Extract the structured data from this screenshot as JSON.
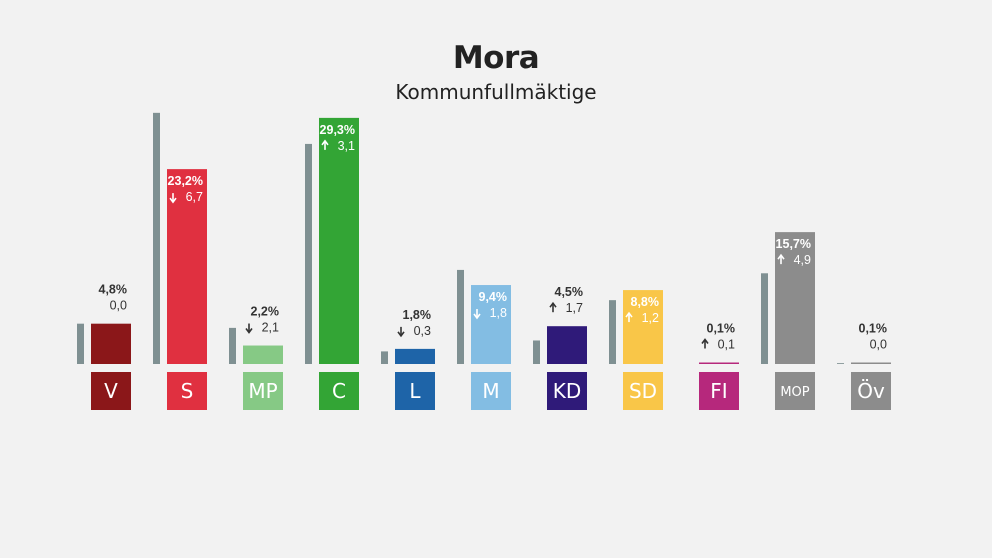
{
  "header": {
    "title": "Mora",
    "subtitle": "Kommunfullmäktige"
  },
  "chart_data": {
    "type": "bar",
    "title": "Mora",
    "subtitle": "Kommunfullmäktige",
    "unit": "%",
    "categories": [
      "V",
      "S",
      "MP",
      "C",
      "L",
      "M",
      "KD",
      "SD",
      "FI",
      "MOP",
      "Öv"
    ],
    "series": [
      {
        "values": [
          4.8,
          23.2,
          2.2,
          29.3,
          1.8,
          9.4,
          4.5,
          8.8,
          0.1,
          15.7,
          0.1
        ]
      },
      {
        "values": [
          4.8,
          29.9,
          4.3,
          26.2,
          1.5,
          11.2,
          2.8,
          7.6,
          0.0,
          10.8,
          0.1
        ]
      }
    ],
    "value_labels": [
      "4,8%",
      "23,2%",
      "2,2%",
      "29,3%",
      "1,8%",
      "9,4%",
      "4,5%",
      "8,8%",
      "0,1%",
      "15,7%",
      "0,1%"
    ],
    "change_labels": [
      "0,0",
      "6,7",
      "2,1",
      "3,1",
      "0,3",
      "1,8",
      "1,7",
      "1,2",
      "0,1",
      "4,9",
      "0,0"
    ],
    "change_direction": [
      "none",
      "down",
      "down",
      "up",
      "down",
      "down",
      "up",
      "up",
      "up",
      "up",
      "none"
    ],
    "colors": [
      "#8b1719",
      "#e03040",
      "#86c985",
      "#33a535",
      "#1e64a8",
      "#83bde3",
      "#2f1a79",
      "#f9c648",
      "#b6287c",
      "#8c8c8c",
      "#8c8c8c"
    ],
    "label_colors": [
      "#ffffff",
      "#ffffff",
      "#ffffff",
      "#ffffff",
      "#ffffff",
      "#ffffff",
      "#ffffff",
      "#ffffff",
      "#ffffff",
      "#ffffff",
      "#ffffff"
    ],
    "previous_color": "#7f9092",
    "ylim": [
      0,
      31
    ]
  }
}
